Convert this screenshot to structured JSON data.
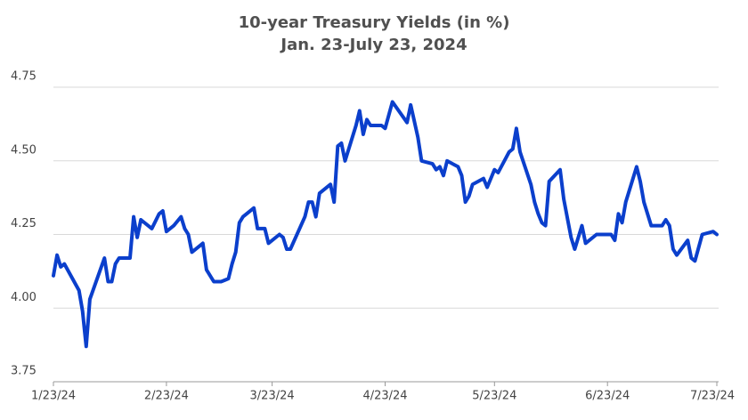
{
  "chart_data": {
    "type": "line",
    "title": "10-year Treasury Yields (in %)",
    "subtitle": "Jan. 23-July 23, 2024",
    "x": [
      "2024-01-23",
      "2024-01-24",
      "2024-01-25",
      "2024-01-26",
      "2024-01-30",
      "2024-01-31",
      "2024-02-01",
      "2024-02-02",
      "2024-02-06",
      "2024-02-07",
      "2024-02-08",
      "2024-02-09",
      "2024-02-10",
      "2024-02-13",
      "2024-02-14",
      "2024-02-15",
      "2024-02-16",
      "2024-02-19",
      "2024-02-21",
      "2024-02-22",
      "2024-02-23",
      "2024-02-25",
      "2024-02-27",
      "2024-02-28",
      "2024-02-29",
      "2024-03-01",
      "2024-03-04",
      "2024-03-05",
      "2024-03-07",
      "2024-03-09",
      "2024-03-11",
      "2024-03-12",
      "2024-03-13",
      "2024-03-14",
      "2024-03-15",
      "2024-03-18",
      "2024-03-19",
      "2024-03-21",
      "2024-03-22",
      "2024-03-25",
      "2024-03-26",
      "2024-03-27",
      "2024-03-28",
      "2024-04-01",
      "2024-04-02",
      "2024-04-03",
      "2024-04-04",
      "2024-04-05",
      "2024-04-08",
      "2024-04-09",
      "2024-04-10",
      "2024-04-11",
      "2024-04-12",
      "2024-04-15",
      "2024-04-16",
      "2024-04-17",
      "2024-04-18",
      "2024-04-19",
      "2024-04-22",
      "2024-04-23",
      "2024-04-25",
      "2024-04-29",
      "2024-04-30",
      "2024-05-02",
      "2024-05-03",
      "2024-05-06",
      "2024-05-07",
      "2024-05-08",
      "2024-05-09",
      "2024-05-10",
      "2024-05-13",
      "2024-05-14",
      "2024-05-15",
      "2024-05-16",
      "2024-05-17",
      "2024-05-20",
      "2024-05-21",
      "2024-05-22",
      "2024-05-23",
      "2024-05-24",
      "2024-05-27",
      "2024-05-28",
      "2024-05-29",
      "2024-05-30",
      "2024-06-02",
      "2024-06-03",
      "2024-06-04",
      "2024-06-05",
      "2024-06-06",
      "2024-06-07",
      "2024-06-10",
      "2024-06-11",
      "2024-06-13",
      "2024-06-14",
      "2024-06-16",
      "2024-06-17",
      "2024-06-20",
      "2024-06-24",
      "2024-06-25",
      "2024-06-26",
      "2024-06-27",
      "2024-06-28",
      "2024-07-01",
      "2024-07-02",
      "2024-07-03",
      "2024-07-05",
      "2024-07-08",
      "2024-07-09",
      "2024-07-10",
      "2024-07-11",
      "2024-07-12",
      "2024-07-15",
      "2024-07-16",
      "2024-07-17",
      "2024-07-19",
      "2024-07-22",
      "2024-07-23"
    ],
    "series": [
      {
        "name": "10-year Treasury yield",
        "color": "#0b3fcc",
        "values": [
          4.11,
          4.18,
          4.14,
          4.15,
          4.06,
          3.99,
          3.87,
          4.03,
          4.17,
          4.09,
          4.09,
          4.15,
          4.17,
          4.17,
          4.31,
          4.24,
          4.3,
          4.27,
          4.32,
          4.33,
          4.26,
          4.28,
          4.31,
          4.27,
          4.25,
          4.19,
          4.22,
          4.13,
          4.09,
          4.09,
          4.1,
          4.15,
          4.19,
          4.29,
          4.31,
          4.34,
          4.27,
          4.27,
          4.22,
          4.25,
          4.24,
          4.2,
          4.2,
          4.31,
          4.36,
          4.36,
          4.31,
          4.39,
          4.42,
          4.36,
          4.55,
          4.56,
          4.5,
          4.62,
          4.67,
          4.59,
          4.64,
          4.62,
          4.62,
          4.61,
          4.7,
          4.63,
          4.69,
          4.58,
          4.5,
          4.49,
          4.47,
          4.48,
          4.45,
          4.5,
          4.48,
          4.45,
          4.36,
          4.38,
          4.42,
          4.44,
          4.41,
          4.44,
          4.47,
          4.46,
          4.53,
          4.54,
          4.61,
          4.53,
          4.42,
          4.36,
          4.32,
          4.29,
          4.28,
          4.43,
          4.47,
          4.37,
          4.24,
          4.2,
          4.28,
          4.22,
          4.25,
          4.25,
          4.23,
          4.32,
          4.29,
          4.36,
          4.48,
          4.43,
          4.36,
          4.28,
          4.28,
          4.3,
          4.28,
          4.2,
          4.18,
          4.23,
          4.17,
          4.16,
          4.25,
          4.26,
          4.25
        ]
      }
    ],
    "xlim": [
      "2024-01-23",
      "2024-07-23"
    ],
    "xticks": [
      {
        "value": "2024-01-23",
        "label": "1/23/24"
      },
      {
        "value": "2024-02-23",
        "label": "2/23/24"
      },
      {
        "value": "2024-03-23",
        "label": "3/23/24"
      },
      {
        "value": "2024-04-23",
        "label": "4/23/24"
      },
      {
        "value": "2024-05-23",
        "label": "5/23/24"
      },
      {
        "value": "2024-06-23",
        "label": "6/23/24"
      },
      {
        "value": "2024-07-23",
        "label": "7/23/24"
      }
    ],
    "ylim": [
      3.75,
      4.75
    ],
    "yticks": [
      {
        "value": 3.75,
        "label": "3.75"
      },
      {
        "value": 4,
        "label": "4.00"
      },
      {
        "value": 4.25,
        "label": "4.25"
      },
      {
        "value": 4.5,
        "label": "4.50"
      },
      {
        "value": 4.75,
        "label": "4.75"
      }
    ],
    "grid": true
  }
}
